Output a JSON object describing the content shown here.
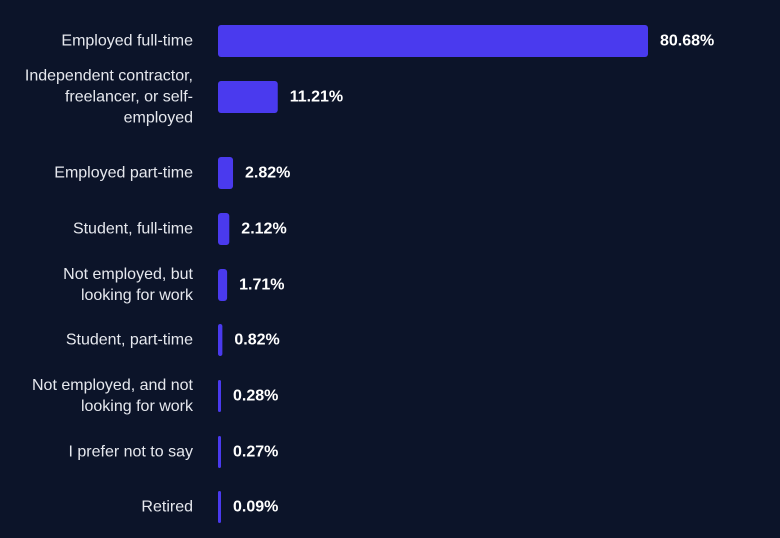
{
  "chart_data": {
    "type": "bar",
    "orientation": "horizontal",
    "categories": [
      [
        "Employed full-time"
      ],
      [
        "Independent contractor,",
        "freelancer, or self-",
        "employed"
      ],
      [
        "Employed part-time"
      ],
      [
        "Student, full-time"
      ],
      [
        "Not employed, but",
        "looking for work"
      ],
      [
        "Student, part-time"
      ],
      [
        "Not employed, and not",
        "looking for work"
      ],
      [
        "I prefer not to say"
      ],
      [
        "Retired"
      ]
    ],
    "values": [
      80.68,
      11.21,
      2.82,
      2.12,
      1.71,
      0.82,
      0.28,
      0.27,
      0.09
    ],
    "value_labels": [
      "80.68%",
      "11.21%",
      "2.82%",
      "2.12%",
      "1.71%",
      "0.82%",
      "0.28%",
      "0.27%",
      "0.09%"
    ],
    "unit": "%",
    "xlim": [
      0,
      80.68
    ],
    "grid": false,
    "legend": "none",
    "colors": {
      "background": "#0c1429",
      "bar": "#4a3aee",
      "label": "#e6e8ee",
      "value": "#ffffff"
    }
  }
}
